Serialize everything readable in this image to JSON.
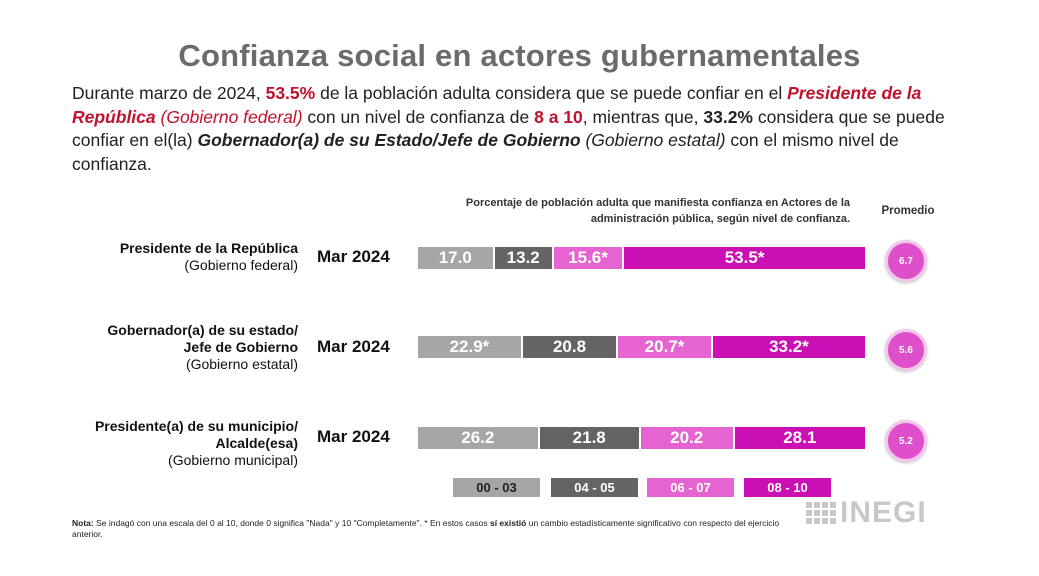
{
  "title": "Confianza social en actores gubernamentales",
  "intro": {
    "p1": "Durante marzo de 2024, ",
    "pct1": "53.5%",
    "p2": " de la población adulta considera que se puede confiar en el ",
    "actor1": "Presidente de la República",
    "actor1_level": " (Gobierno federal)",
    "p3": " con un nivel de confianza de ",
    "range": "8 a 10",
    "p4": ", mientras que, ",
    "pct2": "33.2%",
    "p5": " considera que se puede confiar en el(la) ",
    "actor2": "Gobernador(a) de su Estado/Jefe de Gobierno",
    "actor2_level": " (Gobierno estatal)",
    "p6": " con el mismo nivel de confianza."
  },
  "chart_caption": "Porcentaje de población adulta que manifiesta confianza en Actores de la administración pública, según nivel de confianza.",
  "promedio_label": "Promedio",
  "colors": {
    "c0003": "#a6a6a6",
    "c0405": "#646464",
    "c0607": "#e664d2",
    "c0810": "#cc0fb4",
    "bubble": "#e04fcb"
  },
  "chart_data": {
    "type": "bar",
    "stacked": true,
    "orientation": "horizontal",
    "categories": [
      "Presidente de la República (Gobierno federal)",
      "Gobernador(a) de su estado/ Jefe de Gobierno (Gobierno estatal)",
      "Presidente(a) de su municipio/ Alcalde(esa) (Gobierno municipal)"
    ],
    "series": [
      {
        "name": "00 - 03",
        "values": [
          17.0,
          22.9,
          26.2
        ],
        "labels": [
          "17.0",
          "22.9*",
          "26.2"
        ]
      },
      {
        "name": "04 - 05",
        "values": [
          13.2,
          20.8,
          21.8
        ],
        "labels": [
          "13.2",
          "20.8",
          "21.8"
        ]
      },
      {
        "name": "06 - 07",
        "values": [
          15.6,
          20.7,
          20.2
        ],
        "labels": [
          "15.6*",
          "20.7*",
          "20.2"
        ]
      },
      {
        "name": "08 - 10",
        "values": [
          53.5,
          33.2,
          28.1
        ],
        "labels": [
          "53.5*",
          "33.2*",
          "28.1"
        ]
      }
    ],
    "promedio": [
      "6.7",
      "5.6",
      "5.2"
    ],
    "rows": [
      {
        "name": "Presidente de la República",
        "name2": "",
        "level": "(Gobierno federal)",
        "period": "Mar 2024"
      },
      {
        "name": "Gobernador(a) de su estado/",
        "name2": "Jefe de Gobierno",
        "level": "(Gobierno estatal)",
        "period": "Mar 2024"
      },
      {
        "name": "Presidente(a) de su municipio/",
        "name2": "Alcalde(esa)",
        "level": "(Gobierno municipal)",
        "period": "Mar 2024"
      }
    ],
    "legend_placement": "bottom"
  },
  "note": {
    "label": "Nota:",
    "t1": " Se indagó con una escala del 0 al 10, donde 0 significa \"Nada\" y 10 \"Completamente\". * En estos casos ",
    "emph": "sí existió",
    "t2": " un cambio estadísticamente significativo con respecto del ejercicio anterior."
  },
  "logo_text": "INEGI"
}
